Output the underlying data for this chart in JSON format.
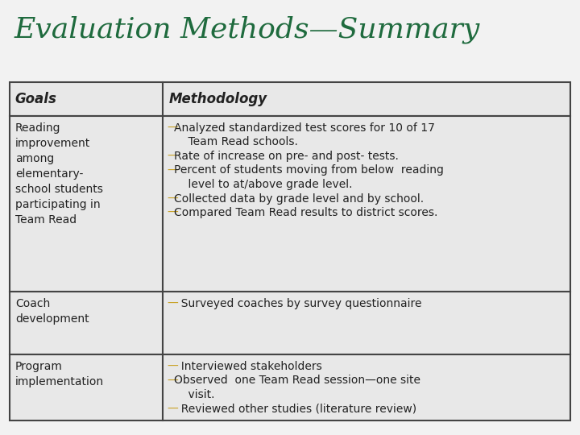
{
  "title": "Evaluation Methods—Summary",
  "title_color": "#1F6B3E",
  "title_fontsize": 26,
  "bg_color": "#F2F2F2",
  "table_bg": "#E8E8E8",
  "border_color": "#444444",
  "text_color": "#222222",
  "dash_color": "#C8A020",
  "header_col1": "Goals",
  "header_col2": "Methodology",
  "header_fontsize": 12,
  "body_fontsize": 10,
  "rows": [
    {
      "goal": "Reading\nimprovement\namong\nelementary-\nschool students\nparticipating in\nTeam Read",
      "methodology_lines": [
        [
          "—",
          "Analyzed standardized test scores for 10 of 17"
        ],
        [
          "",
          "    Team Read schools."
        ],
        [
          "—",
          "Rate of increase on pre- and post- tests."
        ],
        [
          "—",
          "Percent of students moving from below  reading"
        ],
        [
          "",
          "    level to at/above grade level."
        ],
        [
          "—",
          "Collected data by grade level and by school."
        ],
        [
          "—",
          "Compared Team Read results to district scores."
        ]
      ]
    },
    {
      "goal": "Coach\ndevelopment",
      "methodology_lines": [
        [
          "—",
          "  Surveyed coaches by survey questionnaire"
        ]
      ]
    },
    {
      "goal": "Program\nimplementation",
      "methodology_lines": [
        [
          "—",
          "  Interviewed stakeholders"
        ],
        [
          "—",
          "Observed  one Team Read session—one site"
        ],
        [
          "",
          "    visit."
        ],
        [
          "—",
          "  Reviewed other studies (literature review)"
        ]
      ]
    }
  ]
}
